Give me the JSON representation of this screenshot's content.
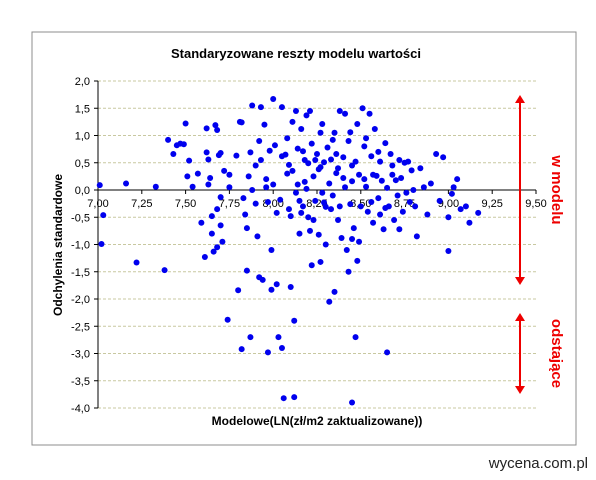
{
  "footer_text": "wycena.com.pl",
  "colors": {
    "points": "#0000EE",
    "annotation": "#EE0000",
    "gridlines": "#C8C8A0",
    "frame": "#8C8C8C"
  },
  "chart_data": {
    "type": "scatter",
    "title": "Standaryzowane  reszty modelu wartości",
    "xlabel": "Modelowe(LN(zł/m2 zaktualizowane))",
    "ylabel": "Odchylenia standardowe",
    "xlim": [
      7.0,
      9.5
    ],
    "ylim": [
      -4.0,
      2.0
    ],
    "x_ticks": [
      "7,00",
      "7,25",
      "7,50",
      "7,75",
      "8,00",
      "8,25",
      "8,50",
      "8,75",
      "9,00",
      "9,25",
      "9,50"
    ],
    "y_ticks": [
      "2,0",
      "1,5",
      "1,0",
      "0,5",
      "0,0",
      "-0,5",
      "-1,0",
      "-1,5",
      "-2,0",
      "-2,5",
      "-3,0",
      "-3,5",
      "-4,0"
    ],
    "grid": true,
    "legend": "none",
    "annotations": [
      {
        "label": "w modelu",
        "from": 2.0,
        "to": -2.0
      },
      {
        "label": "odstające",
        "from": -2.0,
        "to": -4.0
      }
    ],
    "series": [
      {
        "points": [
          [
            7.01,
            0.09
          ],
          [
            7.03,
            -0.46
          ],
          [
            7.02,
            -0.99
          ],
          [
            7.16,
            0.12
          ],
          [
            7.22,
            -1.33
          ],
          [
            7.33,
            0.06
          ],
          [
            7.38,
            -1.47
          ],
          [
            7.4,
            0.92
          ],
          [
            7.43,
            0.66
          ],
          [
            7.45,
            0.82
          ],
          [
            7.47,
            0.85
          ],
          [
            7.49,
            0.84
          ],
          [
            7.5,
            1.22
          ],
          [
            7.51,
            0.25
          ],
          [
            7.52,
            0.54
          ],
          [
            7.54,
            0.06
          ],
          [
            7.57,
            0.3
          ],
          [
            7.59,
            -0.6
          ],
          [
            7.61,
            -1.23
          ],
          [
            7.62,
            1.13
          ],
          [
            7.62,
            0.69
          ],
          [
            7.63,
            0.56
          ],
          [
            7.63,
            0.1
          ],
          [
            7.64,
            0.22
          ],
          [
            7.65,
            -0.48
          ],
          [
            7.65,
            -0.8
          ],
          [
            7.67,
            1.19
          ],
          [
            7.68,
            1.1
          ],
          [
            7.68,
            -0.35
          ],
          [
            7.69,
            0.64
          ],
          [
            7.7,
            0.68
          ],
          [
            7.7,
            -0.13
          ],
          [
            7.7,
            -0.65
          ],
          [
            7.71,
            -0.95
          ],
          [
            7.72,
            0.35
          ],
          [
            7.75,
            0.28
          ],
          [
            7.75,
            0.05
          ],
          [
            7.68,
            -1.05
          ],
          [
            7.66,
            -1.13
          ],
          [
            7.74,
            -2.38
          ],
          [
            7.79,
            0.63
          ],
          [
            7.81,
            1.25
          ],
          [
            7.82,
            1.24
          ],
          [
            7.83,
            -0.15
          ],
          [
            7.84,
            -0.45
          ],
          [
            7.85,
            -0.7
          ],
          [
            7.85,
            -1.48
          ],
          [
            7.86,
            0.25
          ],
          [
            7.87,
            0.69
          ],
          [
            7.88,
            1.55
          ],
          [
            7.88,
            0.0
          ],
          [
            7.9,
            -0.25
          ],
          [
            7.91,
            -0.85
          ],
          [
            7.92,
            -1.6
          ],
          [
            7.93,
            1.52
          ],
          [
            7.94,
            -1.65
          ],
          [
            7.95,
            1.2
          ],
          [
            7.96,
            0.05
          ],
          [
            7.97,
            -0.22
          ],
          [
            7.98,
            0.72
          ],
          [
            7.99,
            -1.1
          ],
          [
            7.99,
            -1.83
          ],
          [
            8.0,
            1.67
          ],
          [
            8.01,
            0.82
          ],
          [
            8.02,
            -1.73
          ],
          [
            8.03,
            -2.7
          ],
          [
            8.05,
            1.52
          ],
          [
            8.05,
            -2.9
          ],
          [
            8.07,
            0.65
          ],
          [
            8.08,
            0.95
          ],
          [
            8.09,
            -0.35
          ],
          [
            8.1,
            -1.78
          ],
          [
            8.11,
            0.35
          ],
          [
            8.12,
            -2.4
          ],
          [
            8.13,
            1.45
          ],
          [
            8.14,
            0.1
          ],
          [
            8.15,
            -0.2
          ],
          [
            8.16,
            1.12
          ],
          [
            8.17,
            0.71
          ],
          [
            8.18,
            0.15
          ],
          [
            8.19,
            0.02
          ],
          [
            8.2,
            -0.5
          ],
          [
            8.21,
            -0.75
          ],
          [
            8.22,
            -1.38
          ],
          [
            8.23,
            0.25
          ],
          [
            8.24,
            -0.2
          ],
          [
            8.25,
            0.66
          ],
          [
            8.26,
            -0.82
          ],
          [
            8.27,
            0.42
          ],
          [
            8.28,
            1.21
          ],
          [
            8.29,
            0.51
          ],
          [
            8.3,
            -0.31
          ],
          [
            8.31,
            0.78
          ],
          [
            8.32,
            -2.05
          ],
          [
            8.33,
            0.56
          ],
          [
            8.34,
            -0.1
          ],
          [
            8.35,
            1.05
          ],
          [
            8.36,
            0.31
          ],
          [
            8.37,
            -0.55
          ],
          [
            8.38,
            1.45
          ],
          [
            8.39,
            -0.88
          ],
          [
            8.4,
            0.6
          ],
          [
            8.41,
            0.05
          ],
          [
            8.42,
            -1.1
          ],
          [
            8.43,
            0.9
          ],
          [
            8.44,
            1.06
          ],
          [
            8.45,
            0.16
          ],
          [
            8.46,
            -0.7
          ],
          [
            8.47,
            0.52
          ],
          [
            8.48,
            1.21
          ],
          [
            8.49,
            0.28
          ],
          [
            8.5,
            -0.3
          ],
          [
            8.51,
            1.5
          ],
          [
            8.52,
            0.8
          ],
          [
            8.53,
            0.06
          ],
          [
            8.54,
            -0.4
          ],
          [
            8.55,
            1.4
          ],
          [
            8.56,
            0.62
          ],
          [
            8.57,
            -0.6
          ],
          [
            8.58,
            1.12
          ],
          [
            8.59,
            0.26
          ],
          [
            8.6,
            -0.15
          ],
          [
            8.61,
            0.52
          ],
          [
            8.62,
            0.17
          ],
          [
            8.63,
            -0.72
          ],
          [
            8.64,
            0.86
          ],
          [
            8.65,
            0.04
          ],
          [
            8.66,
            -0.3
          ],
          [
            8.67,
            0.66
          ],
          [
            8.68,
            0.45
          ],
          [
            8.69,
            -0.55
          ],
          [
            8.7,
            0.18
          ],
          [
            8.71,
            -0.1
          ],
          [
            8.72,
            0.55
          ],
          [
            8.73,
            0.22
          ],
          [
            8.74,
            -0.4
          ],
          [
            8.75,
            0.5
          ],
          [
            8.76,
            -0.05
          ],
          [
            8.77,
            0.52
          ],
          [
            8.78,
            -0.22
          ],
          [
            8.79,
            0.36
          ],
          [
            8.8,
            0.0
          ],
          [
            8.81,
            -0.3
          ],
          [
            8.82,
            -0.85
          ],
          [
            8.84,
            0.4
          ],
          [
            8.86,
            0.05
          ],
          [
            8.88,
            -0.45
          ],
          [
            8.9,
            0.12
          ],
          [
            8.93,
            0.66
          ],
          [
            8.95,
            -0.2
          ],
          [
            8.97,
            0.6
          ],
          [
            9.0,
            -0.5
          ],
          [
            9.0,
            -1.12
          ],
          [
            9.02,
            -0.07
          ],
          [
            9.03,
            0.05
          ],
          [
            9.05,
            0.2
          ],
          [
            9.07,
            -0.35
          ],
          [
            9.1,
            -0.3
          ],
          [
            9.12,
            -0.6
          ],
          [
            9.17,
            -0.42
          ],
          [
            8.45,
            -0.9
          ],
          [
            8.48,
            -1.3
          ],
          [
            8.43,
            -1.5
          ],
          [
            8.47,
            -2.7
          ],
          [
            8.65,
            -2.98
          ],
          [
            8.35,
            -1.87
          ],
          [
            8.45,
            -3.9
          ],
          [
            8.06,
            -3.82
          ],
          [
            8.12,
            -3.8
          ],
          [
            7.97,
            -2.98
          ],
          [
            7.87,
            -2.7
          ],
          [
            7.82,
            -2.92
          ],
          [
            7.8,
            -1.84
          ],
          [
            8.29,
            -0.23
          ],
          [
            8.2,
            0.49
          ],
          [
            8.18,
            0.55
          ],
          [
            8.16,
            -0.42
          ],
          [
            8.14,
            0.76
          ],
          [
            8.26,
            0.38
          ],
          [
            8.28,
            -0.05
          ],
          [
            8.32,
            0.12
          ],
          [
            8.36,
            0.66
          ],
          [
            8.4,
            0.22
          ],
          [
            8.44,
            -0.26
          ],
          [
            8.52,
            0.2
          ],
          [
            8.56,
            -0.22
          ],
          [
            8.6,
            0.7
          ],
          [
            8.64,
            -0.33
          ],
          [
            8.68,
            0.28
          ],
          [
            8.72,
            -0.72
          ],
          [
            8.3,
            -1.0
          ],
          [
            8.27,
            -1.32
          ],
          [
            8.05,
            0.62
          ],
          [
            8.08,
            0.3
          ],
          [
            8.1,
            -0.48
          ],
          [
            8.24,
            0.55
          ],
          [
            8.22,
            0.85
          ],
          [
            8.34,
            0.92
          ],
          [
            8.38,
            -0.3
          ],
          [
            7.92,
            0.9
          ],
          [
            7.93,
            0.55
          ],
          [
            7.9,
            0.45
          ],
          [
            7.96,
            0.2
          ],
          [
            8.02,
            -0.42
          ],
          [
            8.04,
            -0.18
          ],
          [
            8.0,
            0.1
          ],
          [
            8.15,
            -0.8
          ],
          [
            8.11,
            1.25
          ],
          [
            8.19,
            1.37
          ],
          [
            8.23,
            -0.55
          ],
          [
            8.27,
            1.05
          ],
          [
            8.33,
            -0.35
          ],
          [
            8.37,
            0.4
          ],
          [
            8.41,
            1.4
          ],
          [
            8.45,
            0.45
          ],
          [
            8.49,
            -0.95
          ],
          [
            8.53,
            0.95
          ],
          [
            8.57,
            0.28
          ],
          [
            8.61,
            -0.45
          ],
          [
            8.21,
            1.45
          ],
          [
            8.17,
            -0.3
          ],
          [
            8.13,
            -0.05
          ],
          [
            8.09,
            0.46
          ]
        ]
      }
    ]
  }
}
